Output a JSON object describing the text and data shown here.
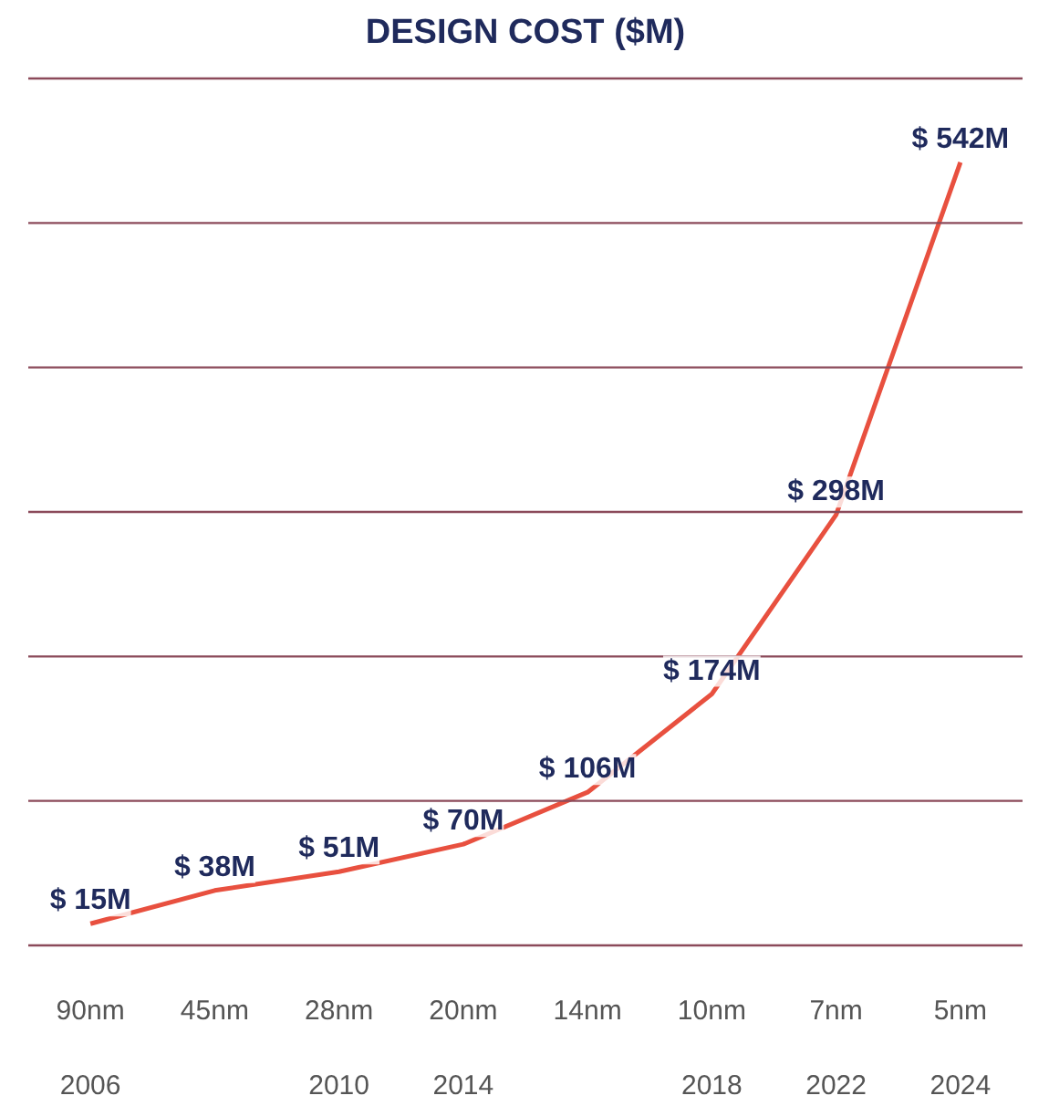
{
  "chart_data": {
    "type": "line",
    "title": "DESIGN COST ($M)",
    "categories": [
      "90nm\n\n2006",
      "45nm",
      "28nm\n\n2010",
      "20nm\n\n2014",
      "14nm",
      "10nm\n\n2018",
      "7nm\n\n2022",
      "5nm\n\n2024"
    ],
    "values": [
      15,
      38,
      51,
      70,
      106,
      174,
      298,
      542
    ],
    "value_labels": [
      "$ 15M",
      "$ 38M",
      "$ 51M",
      "$ 70M",
      "$ 106M",
      "$ 174M",
      "$ 298M",
      "$ 542M"
    ],
    "color": "#e8503f",
    "ref_lines": [
      {
        "axis": "y",
        "value": 0,
        "color": "#8b4a5a"
      },
      {
        "axis": "y",
        "value": 100,
        "color": "#8b4a5a"
      },
      {
        "axis": "y",
        "value": 200,
        "color": "#8b4a5a"
      },
      {
        "axis": "y",
        "value": 300,
        "color": "#8b4a5a"
      },
      {
        "axis": "y",
        "value": 400,
        "color": "#8b4a5a"
      },
      {
        "axis": "y",
        "value": 500,
        "color": "#8b4a5a"
      },
      {
        "axis": "y",
        "value": 600,
        "color": "#8b4a5a"
      }
    ],
    "tick_labels": "x",
    "marker": "none",
    "line_style": "solid"
  }
}
